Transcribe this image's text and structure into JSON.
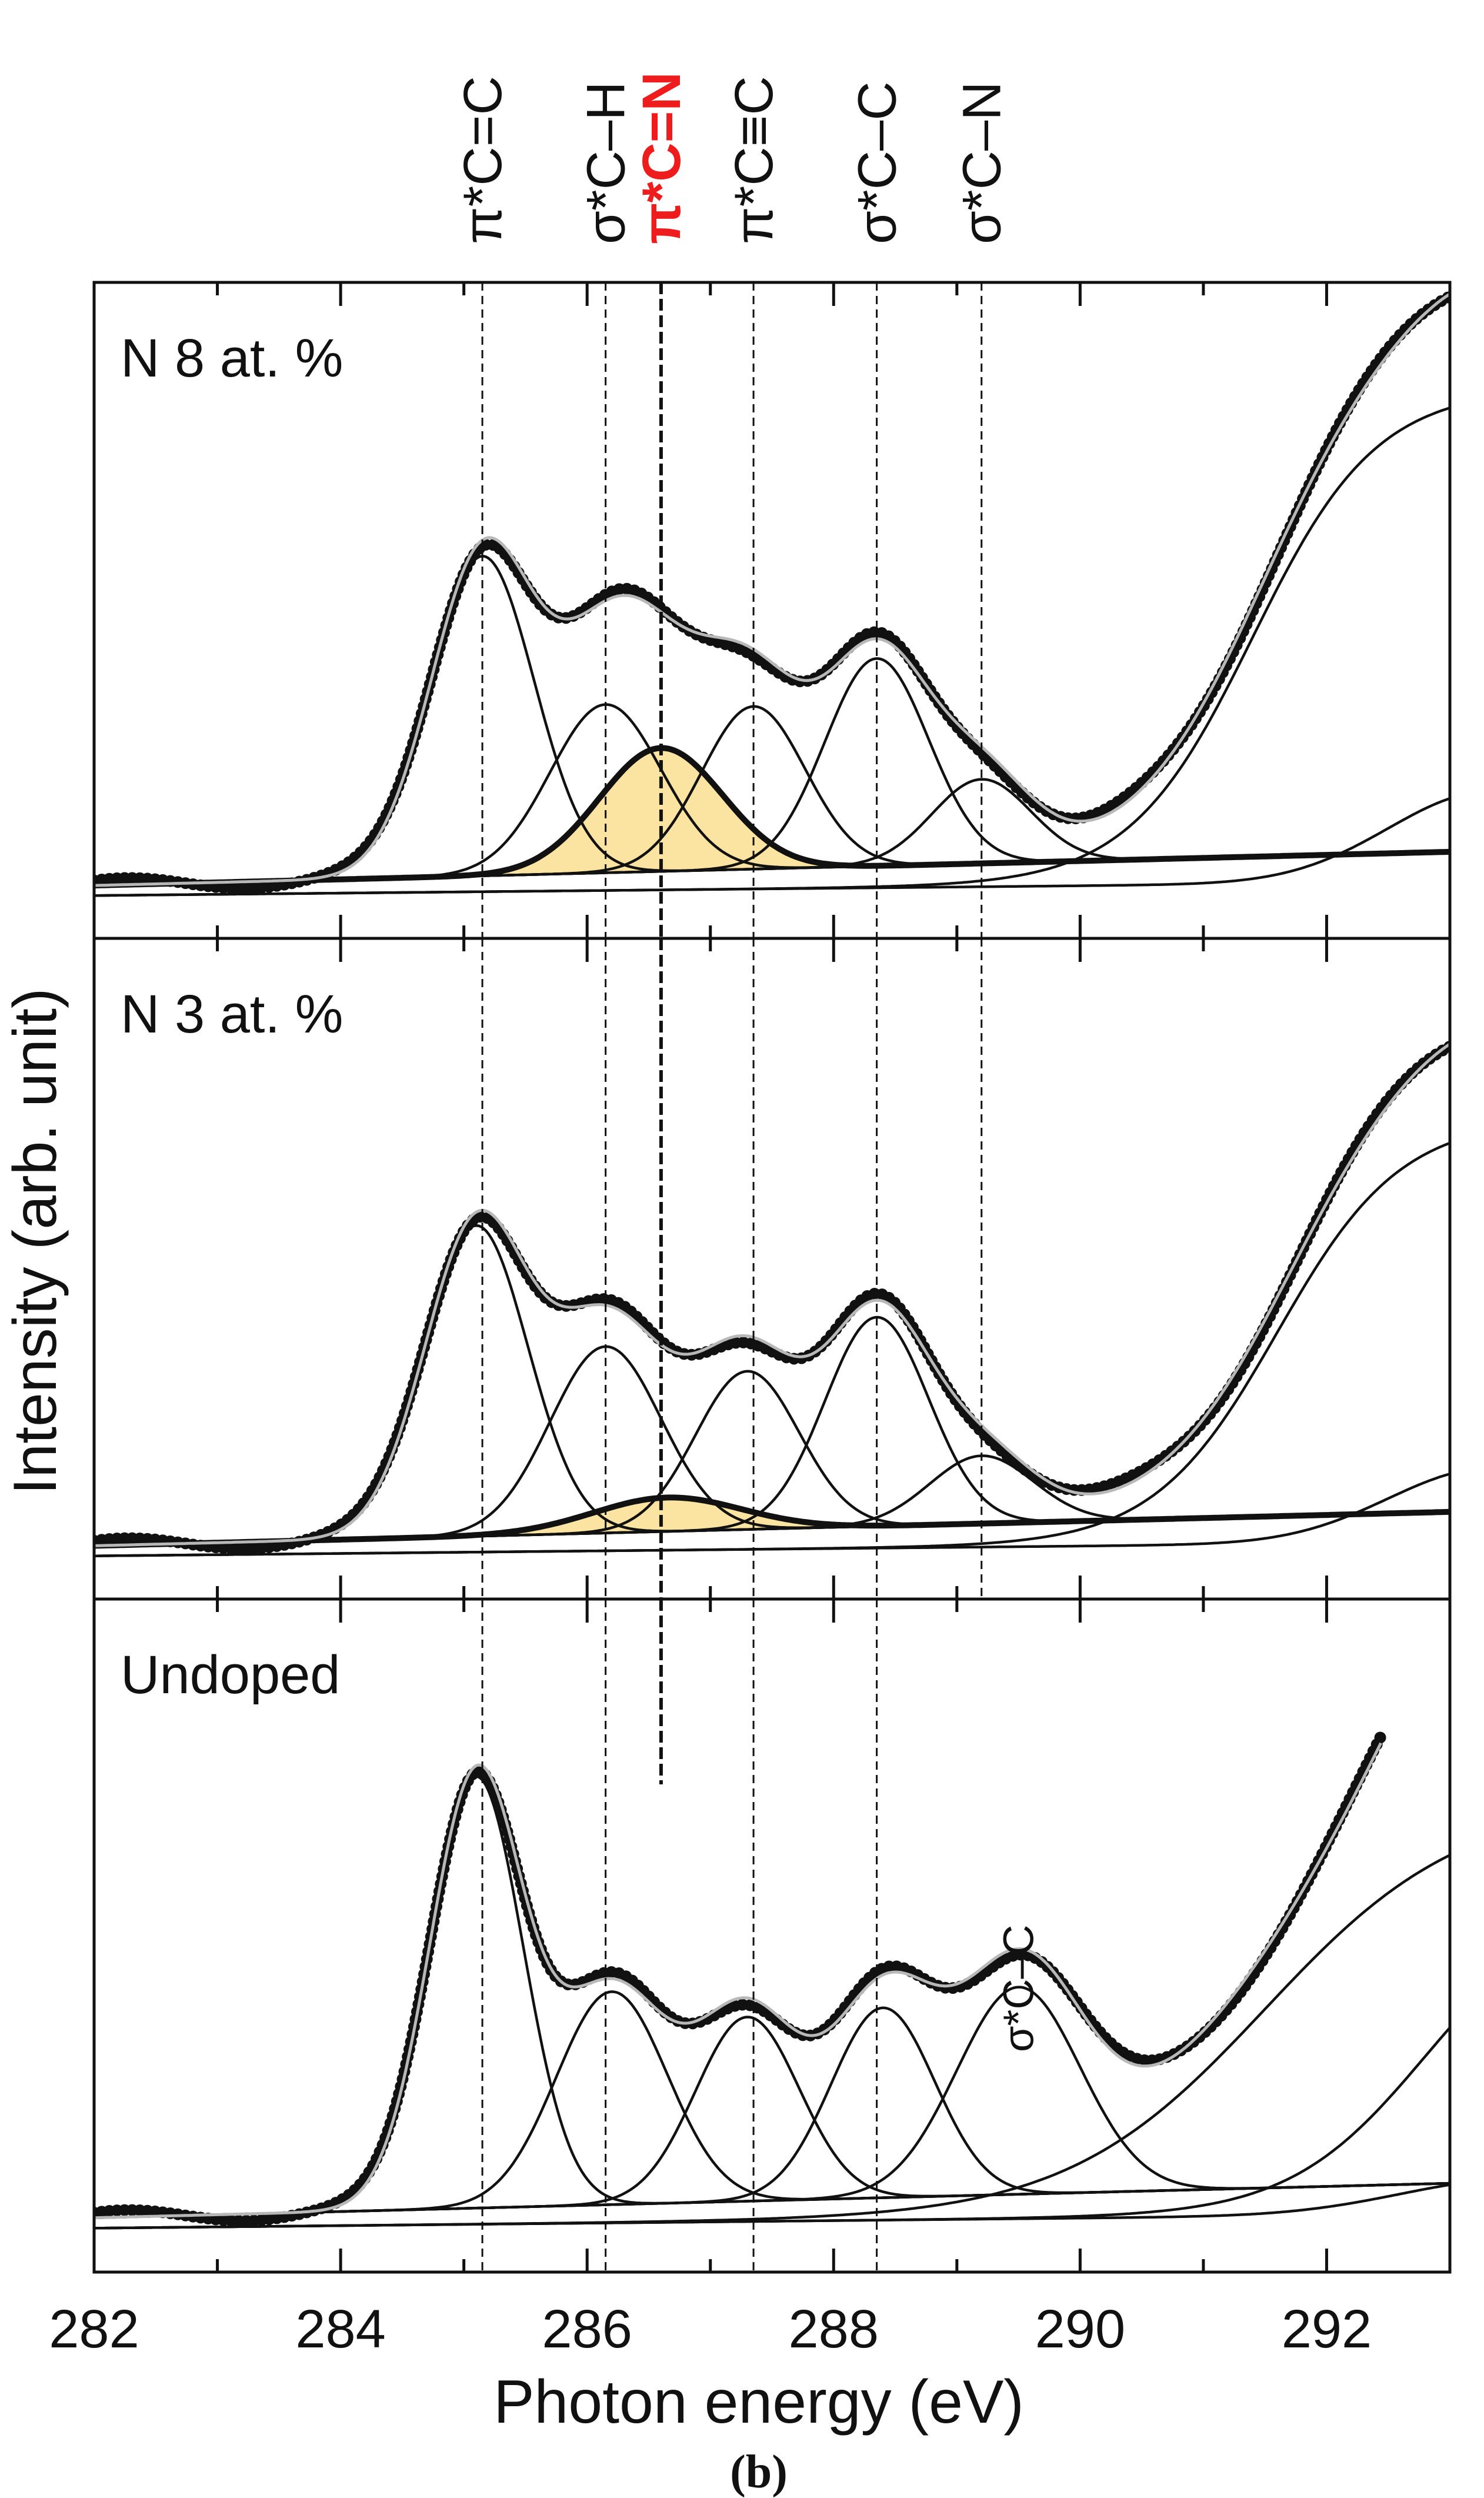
{
  "figure_label": "(b)",
  "colors": {
    "data_points": "#111111",
    "fit_envelope": "#b8b8b8",
    "component_line": "#111111",
    "highlight_fill": "#fbe3a2",
    "highlight_text": "#ee1c1c",
    "ref_line": "#111111"
  },
  "chart_data": {
    "type": "line",
    "title": "",
    "xlabel": "Photon energy (eV)",
    "ylabel": "Intensity (arb. unit)",
    "xlim": [
      282,
      293
    ],
    "x_ticks": [
      282,
      284,
      286,
      288,
      290,
      292
    ],
    "transition_labels": [
      {
        "label": "π*C=C",
        "x": 285.15,
        "highlight": false
      },
      {
        "label": "σ*C–H",
        "x": 286.15,
        "highlight": false
      },
      {
        "label": "π*C=N",
        "x": 286.6,
        "highlight": true
      },
      {
        "label": "π*C≡C",
        "x": 287.35,
        "highlight": false
      },
      {
        "label": "σ*C–C",
        "x": 288.35,
        "highlight": false
      },
      {
        "label": "σ*C–N",
        "x": 289.2,
        "highlight": false
      }
    ],
    "panels": [
      {
        "label": "N 8 at. %",
        "ylim": [
          0,
          1
        ],
        "data_range": [
          282,
          293
        ],
        "baseline": [
          0.03,
          0.09
        ],
        "peaks": [
          {
            "center": 285.15,
            "height": 0.57,
            "width": 0.42,
            "highlight": false
          },
          {
            "center": 286.15,
            "height": 0.3,
            "width": 0.45,
            "highlight": false
          },
          {
            "center": 286.6,
            "height": 0.22,
            "width": 0.5,
            "highlight": true
          },
          {
            "center": 287.35,
            "height": 0.29,
            "width": 0.42,
            "highlight": false
          },
          {
            "center": 288.35,
            "height": 0.37,
            "width": 0.42,
            "highlight": false
          },
          {
            "center": 289.2,
            "height": 0.15,
            "width": 0.4,
            "highlight": false
          }
        ],
        "steps": [
          {
            "center": 291.4,
            "height": 0.88,
            "width": 1.0
          },
          {
            "center": 293.3,
            "height": 0.16,
            "width": 0.8,
            "gauss": true
          }
        ]
      },
      {
        "label": "N 3 at. %",
        "ylim": [
          0,
          1
        ],
        "data_range": [
          282,
          293
        ],
        "baseline": [
          0.03,
          0.09
        ],
        "peaks": [
          {
            "center": 285.1,
            "height": 0.55,
            "width": 0.42,
            "highlight": false
          },
          {
            "center": 286.15,
            "height": 0.33,
            "width": 0.45,
            "highlight": false
          },
          {
            "center": 286.65,
            "height": 0.06,
            "width": 0.6,
            "highlight": true
          },
          {
            "center": 287.3,
            "height": 0.28,
            "width": 0.42,
            "highlight": false
          },
          {
            "center": 288.35,
            "height": 0.37,
            "width": 0.42,
            "highlight": false
          },
          {
            "center": 289.2,
            "height": 0.12,
            "width": 0.42,
            "highlight": false
          }
        ],
        "steps": [
          {
            "center": 291.6,
            "height": 0.75,
            "width": 1.0
          },
          {
            "center": 293.3,
            "height": 0.13,
            "width": 0.8,
            "gauss": true
          }
        ]
      },
      {
        "label": "Undoped",
        "ylim": [
          0,
          1
        ],
        "data_range": [
          282,
          292.45
        ],
        "baseline": [
          0.03,
          0.09
        ],
        "peaks": [
          {
            "center": 285.1,
            "height": 0.75,
            "width": 0.38,
            "highlight": false
          },
          {
            "center": 286.2,
            "height": 0.37,
            "width": 0.45,
            "highlight": false
          },
          {
            "center": 287.3,
            "height": 0.32,
            "width": 0.42,
            "highlight": false
          },
          {
            "center": 288.4,
            "height": 0.33,
            "width": 0.42,
            "highlight": false
          },
          {
            "center": 289.5,
            "height": 0.36,
            "width": 0.5,
            "highlight": false
          }
        ],
        "steps": [
          {
            "center": 291.5,
            "height": 0.72,
            "width": 1.6
          },
          {
            "center": 292.8,
            "height": 0.55,
            "width": 1.1
          },
          {
            "center": 293.5,
            "height": 0.06,
            "width": 0.9,
            "gauss": true
          }
        ],
        "annotation": {
          "label": "σ*C–C",
          "x": 289.5
        }
      }
    ]
  }
}
